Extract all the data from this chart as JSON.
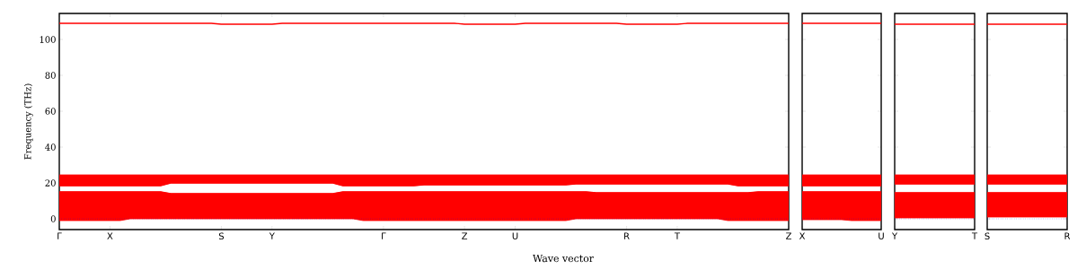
{
  "chart_data": [
    {
      "type": "line",
      "xlabel": "Wave vector",
      "ylabel": "Frequency (THz)",
      "ylim": [
        -6,
        114.5
      ],
      "yticks": [
        0,
        20,
        40,
        60,
        80,
        100
      ],
      "categories": [
        "Γ",
        null,
        null,
        null,
        null,
        "X",
        null,
        null,
        null,
        null,
        null,
        null,
        null,
        null,
        null,
        null,
        "S",
        null,
        null,
        null,
        null,
        "Y",
        null,
        null,
        null,
        null,
        null,
        null,
        null,
        null,
        null,
        null,
        "Γ",
        null,
        null,
        null,
        null,
        null,
        null,
        null,
        "Z",
        null,
        null,
        null,
        null,
        "U",
        null,
        null,
        null,
        null,
        null,
        null,
        null,
        null,
        null,
        null,
        "R",
        null,
        null,
        null,
        null,
        "T",
        null,
        null,
        null,
        null,
        null,
        null,
        null,
        null,
        null,
        null,
        "Z"
      ],
      "series": [
        {
          "color": "#ff0000",
          "values": [
            109,
            109,
            109,
            109,
            109,
            109,
            109,
            109,
            109,
            109,
            109,
            109,
            109,
            109,
            109,
            109,
            108.5,
            108.5,
            108.5,
            108.5,
            108.5,
            108.5,
            109,
            109,
            109,
            109,
            109,
            109,
            109,
            109,
            109,
            109,
            109,
            109,
            109,
            109,
            109,
            109,
            109,
            109,
            108.5,
            108.5,
            108.5,
            108.5,
            108.5,
            108.5,
            109,
            109,
            109,
            109,
            109,
            109,
            109,
            109,
            109,
            109,
            108.5,
            108.5,
            108.5,
            108.5,
            108.5,
            108.5,
            109,
            109,
            109,
            109,
            109,
            109,
            109,
            109,
            109,
            109,
            109
          ]
        },
        {
          "color": "#ff0000",
          "values": [
            15,
            15,
            15,
            15,
            15,
            15,
            15,
            15,
            15,
            15,
            15,
            14,
            14,
            14,
            14,
            14,
            14,
            14,
            14,
            14,
            14,
            14,
            14,
            14,
            14,
            14,
            14,
            14,
            15,
            15,
            15,
            15,
            15,
            15,
            15,
            15,
            15,
            15,
            15,
            15,
            15,
            15,
            15,
            15,
            15,
            15,
            15,
            15,
            15,
            15,
            15,
            15,
            15,
            14.5,
            14.5,
            14.5,
            14.5,
            14.5,
            14.5,
            14.5,
            14.5,
            14.5,
            14.5,
            14.5,
            14.5,
            14.5,
            14.5,
            14.5,
            14.5,
            15,
            15,
            15,
            15
          ],
          "lower": [
            -1,
            -1,
            -1,
            -1,
            -1,
            -1,
            -1,
            0,
            0,
            0,
            0,
            0,
            0,
            0,
            0,
            0,
            0,
            0,
            0,
            0,
            0,
            0,
            0,
            0,
            0,
            0,
            0,
            0,
            0,
            0,
            -1,
            -1,
            -1,
            -1,
            -1,
            -1,
            -1,
            -1,
            -1,
            -1,
            -1,
            -1,
            -1,
            -1,
            -1,
            -1,
            -1,
            -1,
            -1,
            -1,
            -1,
            0,
            0,
            0,
            0,
            0,
            0,
            0,
            0,
            0,
            0,
            0,
            0,
            0,
            0,
            0,
            -1,
            -1,
            -1,
            -1,
            -1,
            -1,
            -1
          ],
          "upper": [
            15,
            15,
            15,
            15,
            15,
            15,
            15,
            15,
            15,
            15,
            15,
            14,
            14,
            14,
            14,
            14,
            14,
            14,
            14,
            14,
            14,
            14,
            14,
            14,
            14,
            14,
            14,
            14,
            15,
            15,
            15,
            15,
            15,
            15,
            15,
            15,
            15,
            15,
            15,
            15,
            15,
            15,
            15,
            15,
            15,
            15,
            15,
            15,
            15,
            15,
            15,
            15,
            15,
            14.5,
            14.5,
            14.5,
            14.5,
            14.5,
            14.5,
            14.5,
            14.5,
            14.5,
            14.5,
            14.5,
            14.5,
            14.5,
            14.5,
            14.5,
            14.5,
            15,
            15,
            15,
            15
          ]
        },
        {
          "color": "#ff0000",
          "values": [
            18.5,
            18.5,
            18.5,
            18.5,
            18.5,
            18.5,
            18.5,
            18.5,
            18.5,
            18.5,
            18.5,
            20,
            20,
            20,
            20,
            20,
            20,
            20,
            20,
            20,
            20,
            20,
            20,
            20,
            20,
            20,
            20,
            20,
            18.5,
            18.5,
            18.5,
            18.5,
            18.5,
            18.5,
            18.5,
            18.5,
            19,
            19,
            19,
            19,
            19,
            19,
            19,
            19,
            19,
            19,
            19,
            19,
            19,
            19,
            19,
            19.5,
            19.5,
            19.5,
            19.5,
            19.5,
            19.5,
            19.5,
            19.5,
            19.5,
            19.5,
            19.5,
            19.5,
            19.5,
            19.5,
            19.5,
            19.5,
            18.5,
            18.5,
            18.5,
            18.5,
            18.5,
            18.5
          ],
          "lower": [
            18.5,
            18.5,
            18.5,
            18.5,
            18.5,
            18.5,
            18.5,
            18.5,
            18.5,
            18.5,
            18.5,
            20,
            20,
            20,
            20,
            20,
            20,
            20,
            20,
            20,
            20,
            20,
            20,
            20,
            20,
            20,
            20,
            20,
            18.5,
            18.5,
            18.5,
            18.5,
            18.5,
            18.5,
            18.5,
            18.5,
            19,
            19,
            19,
            19,
            19,
            19,
            19,
            19,
            19,
            19,
            19,
            19,
            19,
            19,
            19,
            19.5,
            19.5,
            19.5,
            19.5,
            19.5,
            19.5,
            19.5,
            19.5,
            19.5,
            19.5,
            19.5,
            19.5,
            19.5,
            19.5,
            19.5,
            19.5,
            18.5,
            18.5,
            18.5,
            18.5,
            18.5,
            18.5
          ],
          "upper": [
            24.5,
            24.5,
            24.5,
            24.5,
            24.5,
            24.5,
            24.5,
            24.5,
            24.5,
            24.5,
            24.5,
            24.5,
            24.5,
            24.5,
            24.5,
            24.5,
            24.5,
            24.5,
            24.5,
            24.5,
            24.5,
            24.5,
            24.5,
            24.5,
            24.5,
            24.5,
            24.5,
            24.5,
            24.5,
            24.5,
            24.5,
            24.5,
            24.5,
            24.5,
            24.5,
            24.5,
            24.5,
            24.5,
            24.5,
            24.5,
            24.5,
            24.5,
            24.5,
            24.5,
            24.5,
            24.5,
            24.5,
            24.5,
            24.5,
            24.5,
            24.5,
            24.5,
            24.5,
            24.5,
            24.5,
            24.5,
            24.5,
            24.5,
            24.5,
            24.5,
            24.5,
            24.5,
            24.5,
            24.5,
            24.5,
            24.5,
            24.5,
            24.5,
            24.5,
            24.5,
            24.5,
            24.5,
            24.5
          ]
        }
      ],
      "ref_lines": [
        {
          "axis": "y",
          "value": 0,
          "color": "#0000ff",
          "line_style": "dotted"
        }
      ]
    },
    {
      "type": "line",
      "tick_labels": "x",
      "ylim": [
        -6,
        114.5
      ],
      "yticks": [
        0,
        20,
        40,
        60,
        80,
        100
      ],
      "categories": [
        "X",
        null,
        null,
        null,
        null,
        null,
        null,
        null,
        "U"
      ],
      "series": [
        {
          "color": "#ff0000",
          "values": [
            109,
            109,
            109,
            109,
            109,
            109,
            109,
            109,
            109
          ]
        },
        {
          "color": "#ff0000",
          "values": [
            15,
            15,
            15,
            15,
            15,
            15,
            15,
            15,
            15
          ],
          "lower": [
            -0.5,
            -0.5,
            -0.5,
            -0.5,
            -0.5,
            -1,
            -1,
            -1,
            -1
          ],
          "upper": [
            15,
            15,
            15,
            15,
            15,
            15,
            15,
            15,
            15
          ]
        },
        {
          "color": "#ff0000",
          "values": [
            18.5,
            18.5,
            18.5,
            18.5,
            18.5,
            18.5,
            18.5,
            18.5,
            18.5
          ],
          "lower": [
            18.5,
            18.5,
            18.5,
            18.5,
            18.5,
            18.5,
            18.5,
            18.5,
            18.5
          ],
          "upper": [
            24.5,
            24.5,
            24.5,
            24.5,
            24.5,
            24.5,
            24.5,
            24.5,
            24.5
          ]
        }
      ],
      "ref_lines": [
        {
          "axis": "y",
          "value": 0,
          "color": "#0000ff",
          "line_style": "dotted"
        }
      ]
    },
    {
      "type": "line",
      "tick_labels": "x",
      "ylim": [
        -6,
        114.5
      ],
      "yticks": [
        0,
        20,
        40,
        60,
        80,
        100
      ],
      "categories": [
        "Y",
        null,
        null,
        null,
        null,
        null,
        null,
        null,
        "T"
      ],
      "series": [
        {
          "color": "#ff0000",
          "values": [
            108.5,
            108.5,
            108.5,
            108.5,
            108.5,
            108.5,
            108.5,
            108.5,
            108.5
          ]
        },
        {
          "color": "#ff0000",
          "values": [
            14.5,
            14.5,
            14.5,
            14.5,
            14.5,
            14.5,
            14.5,
            14.5,
            14.5
          ],
          "lower": [
            0.5,
            0.5,
            0.5,
            0.5,
            0.5,
            0.5,
            0.5,
            0.5,
            0.5
          ],
          "upper": [
            14.5,
            14.5,
            14.5,
            14.5,
            14.5,
            14.5,
            14.5,
            14.5,
            14.5
          ]
        },
        {
          "color": "#ff0000",
          "values": [
            19.5,
            19.5,
            19.5,
            19.5,
            19.5,
            19.5,
            19.5,
            19.5,
            19.5
          ],
          "lower": [
            19.5,
            19.5,
            19.5,
            19.5,
            19.5,
            19.5,
            19.5,
            19.5,
            19.5
          ],
          "upper": [
            24.5,
            24.5,
            24.5,
            24.5,
            24.5,
            24.5,
            24.5,
            24.5,
            24.5
          ]
        }
      ],
      "ref_lines": [
        {
          "axis": "y",
          "value": 0,
          "color": "#0000ff",
          "line_style": "dotted"
        }
      ]
    },
    {
      "type": "line",
      "tick_labels": "x",
      "ylim": [
        -6,
        114.5
      ],
      "yticks": [
        0,
        20,
        40,
        60,
        80,
        100
      ],
      "categories": [
        "S",
        null,
        null,
        null,
        null,
        null,
        null,
        null,
        "R"
      ],
      "series": [
        {
          "color": "#ff0000",
          "values": [
            108.5,
            108.5,
            108.5,
            108.5,
            108.5,
            108.5,
            108.5,
            108.5,
            108.5
          ]
        },
        {
          "color": "#ff0000",
          "values": [
            14.5,
            14.5,
            14.5,
            14.5,
            14.5,
            14.5,
            14.5,
            14.5,
            14.5
          ],
          "lower": [
            1,
            1,
            1,
            1,
            1,
            1,
            1,
            1,
            1
          ],
          "upper": [
            14.5,
            14.5,
            14.5,
            14.5,
            14.5,
            14.5,
            14.5,
            14.5,
            14.5
          ]
        },
        {
          "color": "#ff0000",
          "values": [
            19.5,
            19.5,
            19.5,
            19.5,
            19.5,
            19.5,
            19.5,
            19.5,
            19.5
          ],
          "lower": [
            19.5,
            19.5,
            19.5,
            19.5,
            19.5,
            19.5,
            19.5,
            19.5,
            19.5
          ],
          "upper": [
            24.5,
            24.5,
            24.5,
            24.5,
            24.5,
            24.5,
            24.5,
            24.5,
            24.5
          ]
        }
      ],
      "ref_lines": [
        {
          "axis": "y",
          "value": 0,
          "color": "#0000ff",
          "line_style": "dotted"
        }
      ]
    }
  ]
}
